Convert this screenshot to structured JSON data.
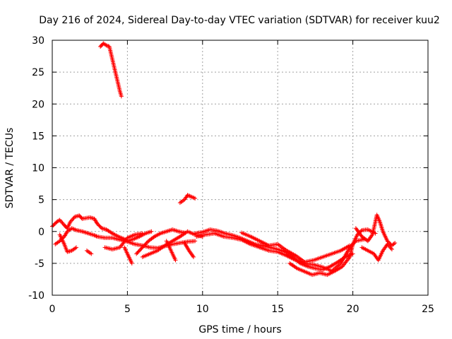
{
  "chart_data": {
    "type": "scatter",
    "title": "Day 216 of 2024, Sidereal Day-to-day VTEC variation (SDTVAR) for receiver kuu2",
    "xlabel": "GPS time / hours",
    "ylabel": "SDTVAR / TECUs",
    "xlim": [
      0,
      25
    ],
    "ylim": [
      -10,
      30
    ],
    "xticks": [
      0,
      5,
      10,
      15,
      20,
      25
    ],
    "yticks": [
      -10,
      -5,
      0,
      5,
      10,
      15,
      20,
      25,
      30
    ],
    "grid": true,
    "marker": "+",
    "series": [
      {
        "name": "SDTVAR",
        "color": "#ff0000",
        "tracks": [
          [
            [
              3.2,
              29.0
            ],
            [
              3.4,
              29.5
            ],
            [
              3.6,
              29.2
            ],
            [
              3.8,
              29.0
            ],
            [
              3.9,
              28.0
            ],
            [
              4.0,
              27.0
            ],
            [
              4.1,
              26.0
            ],
            [
              4.2,
              25.0
            ],
            [
              4.3,
              24.0
            ],
            [
              4.4,
              23.0
            ],
            [
              4.5,
              22.0
            ],
            [
              4.6,
              21.2
            ]
          ],
          [
            [
              8.5,
              4.5
            ],
            [
              8.8,
              5.0
            ],
            [
              9.0,
              5.7
            ],
            [
              9.2,
              5.5
            ],
            [
              9.5,
              5.2
            ]
          ],
          [
            [
              0.0,
              0.8
            ],
            [
              0.3,
              1.5
            ],
            [
              0.5,
              1.8
            ],
            [
              0.8,
              1.0
            ],
            [
              1.0,
              0.5
            ],
            [
              1.2,
              1.5
            ],
            [
              1.5,
              2.3
            ],
            [
              1.8,
              2.5
            ],
            [
              2.0,
              2.0
            ],
            [
              2.5,
              2.2
            ],
            [
              2.8,
              2.0
            ],
            [
              3.0,
              1.2
            ],
            [
              3.3,
              0.5
            ],
            [
              3.6,
              0.3
            ],
            [
              4.0,
              -0.3
            ],
            [
              4.4,
              -0.8
            ],
            [
              4.8,
              -1.2
            ],
            [
              5.0,
              -1.5
            ],
            [
              5.4,
              -1.2
            ],
            [
              5.8,
              -0.8
            ],
            [
              6.2,
              -0.3
            ],
            [
              6.6,
              0.0
            ]
          ],
          [
            [
              0.2,
              -2.0
            ],
            [
              0.5,
              -1.5
            ],
            [
              0.8,
              -0.8
            ],
            [
              1.0,
              0.0
            ],
            [
              1.3,
              0.5
            ],
            [
              1.6,
              0.2
            ],
            [
              2.0,
              0.0
            ],
            [
              2.4,
              -0.3
            ],
            [
              2.8,
              -0.6
            ],
            [
              3.0,
              -0.8
            ],
            [
              3.5,
              -1.0
            ],
            [
              4.0,
              -1.0
            ],
            [
              4.5,
              -1.3
            ],
            [
              5.0,
              -1.6
            ],
            [
              5.5,
              -2.0
            ],
            [
              6.0,
              -2.2
            ],
            [
              6.5,
              -2.5
            ],
            [
              7.0,
              -2.6
            ],
            [
              7.5,
              -2.3
            ],
            [
              8.0,
              -2.0
            ],
            [
              8.5,
              -1.8
            ],
            [
              9.0,
              -1.6
            ],
            [
              9.5,
              -1.5
            ]
          ],
          [
            [
              0.5,
              -0.5
            ],
            [
              0.8,
              -2.0
            ],
            [
              1.0,
              -3.2
            ],
            [
              1.3,
              -3.0
            ],
            [
              1.6,
              -2.5
            ]
          ],
          [
            [
              2.3,
              -3.0
            ],
            [
              2.6,
              -3.5
            ]
          ],
          [
            [
              3.5,
              -2.5
            ],
            [
              4.0,
              -2.8
            ],
            [
              4.5,
              -2.5
            ],
            [
              5.0,
              -1.0
            ],
            [
              5.5,
              -0.5
            ],
            [
              6.0,
              -0.3
            ]
          ],
          [
            [
              4.8,
              -2.5
            ],
            [
              5.0,
              -3.5
            ],
            [
              5.3,
              -5.0
            ]
          ],
          [
            [
              5.6,
              -3.5
            ],
            [
              6.0,
              -2.5
            ],
            [
              6.4,
              -1.5
            ],
            [
              6.8,
              -0.8
            ],
            [
              7.2,
              -0.3
            ],
            [
              7.6,
              0.0
            ],
            [
              8.0,
              0.3
            ],
            [
              8.4,
              0.0
            ],
            [
              8.8,
              -0.2
            ]
          ],
          [
            [
              6.0,
              -4.0
            ],
            [
              6.5,
              -3.5
            ],
            [
              7.0,
              -3.0
            ],
            [
              7.5,
              -2.2
            ],
            [
              8.0,
              -1.5
            ],
            [
              8.5,
              -0.8
            ],
            [
              9.0,
              0.0
            ],
            [
              9.5,
              -0.5
            ],
            [
              10.0,
              -0.8
            ]
          ],
          [
            [
              7.6,
              -1.5
            ],
            [
              7.8,
              -2.5
            ],
            [
              8.0,
              -3.5
            ],
            [
              8.2,
              -4.5
            ]
          ],
          [
            [
              8.8,
              -1.8
            ],
            [
              9.1,
              -3.0
            ],
            [
              9.4,
              -4.0
            ]
          ],
          [
            [
              9.5,
              -0.3
            ],
            [
              10.0,
              -0.1
            ],
            [
              10.5,
              0.3
            ],
            [
              11.0,
              0.1
            ],
            [
              11.5,
              -0.3
            ],
            [
              12.0,
              -0.6
            ],
            [
              12.5,
              -1.0
            ],
            [
              13.0,
              -1.5
            ],
            [
              13.5,
              -2.0
            ],
            [
              14.0,
              -2.2
            ],
            [
              14.5,
              -2.5
            ],
            [
              15.0,
              -2.8
            ],
            [
              15.5,
              -3.2
            ],
            [
              16.0,
              -4.0
            ],
            [
              16.5,
              -5.0
            ],
            [
              17.0,
              -5.5
            ],
            [
              17.5,
              -5.8
            ],
            [
              18.0,
              -6.0
            ],
            [
              18.5,
              -5.5
            ],
            [
              19.0,
              -4.8
            ],
            [
              19.5,
              -4.0
            ],
            [
              20.0,
              -3.5
            ]
          ],
          [
            [
              9.6,
              -0.8
            ],
            [
              10.2,
              -0.5
            ],
            [
              10.8,
              -0.3
            ],
            [
              11.4,
              -0.8
            ],
            [
              12.0,
              -1.0
            ],
            [
              12.6,
              -1.3
            ],
            [
              13.2,
              -2.0
            ],
            [
              13.8,
              -2.5
            ],
            [
              14.4,
              -3.0
            ],
            [
              15.0,
              -3.2
            ],
            [
              15.6,
              -3.8
            ],
            [
              16.2,
              -4.5
            ],
            [
              16.8,
              -5.0
            ],
            [
              17.4,
              -5.2
            ],
            [
              18.0,
              -5.6
            ],
            [
              18.6,
              -6.2
            ],
            [
              19.2,
              -5.0
            ],
            [
              19.8,
              -2.5
            ],
            [
              20.2,
              -1.5
            ],
            [
              20.8,
              -1.2
            ]
          ],
          [
            [
              12.6,
              -0.2
            ],
            [
              13.2,
              -0.8
            ],
            [
              13.8,
              -1.5
            ],
            [
              14.4,
              -2.2
            ],
            [
              15.0,
              -2.0
            ],
            [
              15.6,
              -3.0
            ],
            [
              16.2,
              -3.8
            ],
            [
              16.8,
              -4.8
            ],
            [
              17.4,
              -4.5
            ],
            [
              18.0,
              -4.0
            ],
            [
              18.6,
              -3.5
            ],
            [
              19.2,
              -3.0
            ],
            [
              19.8,
              -2.2
            ]
          ],
          [
            [
              15.8,
              -5.0
            ],
            [
              16.3,
              -5.8
            ],
            [
              16.8,
              -6.3
            ],
            [
              17.3,
              -6.8
            ],
            [
              17.8,
              -6.5
            ],
            [
              18.3,
              -6.8
            ],
            [
              18.8,
              -6.2
            ],
            [
              19.3,
              -5.5
            ],
            [
              19.8,
              -4.0
            ],
            [
              20.0,
              -2.0
            ],
            [
              20.3,
              -0.5
            ],
            [
              20.6,
              0.2
            ],
            [
              21.0,
              0.3
            ],
            [
              21.5,
              -0.3
            ]
          ],
          [
            [
              20.2,
              0.5
            ],
            [
              20.6,
              -0.8
            ],
            [
              21.0,
              -1.5
            ],
            [
              21.3,
              -0.5
            ],
            [
              21.5,
              1.5
            ],
            [
              21.6,
              2.6
            ],
            [
              21.8,
              1.5
            ],
            [
              22.0,
              0.0
            ],
            [
              22.3,
              -1.5
            ],
            [
              22.6,
              -2.2
            ],
            [
              22.8,
              -1.8
            ]
          ],
          [
            [
              20.6,
              -2.5
            ],
            [
              21.0,
              -3.0
            ],
            [
              21.4,
              -3.5
            ],
            [
              21.7,
              -4.5
            ],
            [
              22.0,
              -3.0
            ],
            [
              22.3,
              -2.0
            ],
            [
              22.6,
              -2.8
            ]
          ]
        ]
      }
    ]
  }
}
